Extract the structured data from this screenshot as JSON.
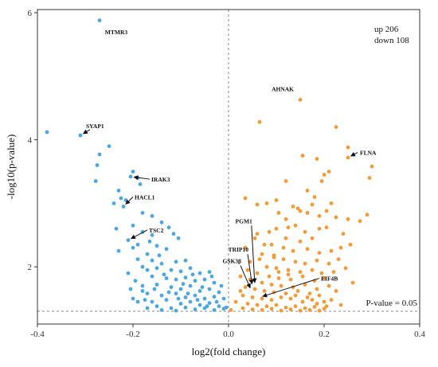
{
  "chart_data": {
    "type": "scatter",
    "title": "",
    "xlabel": "log2(fold change)",
    "ylabel": "-log10(p-value)",
    "xlim": [
      -0.4,
      0.4
    ],
    "ylim": [
      1.1,
      6.05
    ],
    "xticks": [
      -0.4,
      -0.2,
      0.0,
      0.2,
      0.4
    ],
    "xtick_labels": [
      "-0.4",
      "-0.2",
      "0.0",
      "0.2",
      "0.4"
    ],
    "yticks": [
      2,
      4,
      6
    ],
    "ytick_labels": [
      "2",
      "4",
      "6"
    ],
    "grid": false,
    "threshold": {
      "y": 1.301,
      "label": "P-value = 0.05"
    },
    "vertical_line_x": 0,
    "summary": {
      "up": "up 206",
      "down": "down 108"
    },
    "colors": {
      "up": "#f29b38",
      "down": "#4da6df",
      "guide": "#888888",
      "annotation": "#111111"
    },
    "series": [
      {
        "color": "#4da6df",
        "points": [
          [
            -0.27,
            5.88
          ],
          [
            -0.38,
            4.12
          ],
          [
            -0.31,
            4.07
          ],
          [
            -0.25,
            3.9
          ],
          [
            -0.27,
            3.77
          ],
          [
            -0.275,
            3.6
          ],
          [
            -0.278,
            3.35
          ],
          [
            -0.2,
            3.5
          ],
          [
            -0.205,
            3.42
          ],
          [
            -0.19,
            3.4
          ],
          [
            -0.185,
            3.3
          ],
          [
            -0.23,
            3.2
          ],
          [
            -0.225,
            3.08
          ],
          [
            -0.215,
            3.05
          ],
          [
            -0.22,
            2.95
          ],
          [
            -0.24,
            3.0
          ],
          [
            -0.18,
            2.85
          ],
          [
            -0.16,
            2.8
          ],
          [
            -0.14,
            2.7
          ],
          [
            -0.125,
            2.62
          ],
          [
            -0.115,
            2.52
          ],
          [
            -0.235,
            2.6
          ],
          [
            -0.2,
            2.65
          ],
          [
            -0.18,
            2.55
          ],
          [
            -0.105,
            2.45
          ],
          [
            -0.21,
            2.42
          ],
          [
            -0.165,
            2.4
          ],
          [
            -0.23,
            2.25
          ],
          [
            -0.2,
            2.3
          ],
          [
            -0.15,
            2.33
          ],
          [
            -0.13,
            2.28
          ],
          [
            -0.17,
            2.2
          ],
          [
            -0.19,
            2.12
          ],
          [
            -0.16,
            2.1
          ],
          [
            -0.14,
            2.05
          ],
          [
            -0.11,
            2.08
          ],
          [
            -0.09,
            2.1
          ],
          [
            -0.18,
            2.0
          ],
          [
            -0.15,
            1.98
          ],
          [
            -0.12,
            1.95
          ],
          [
            -0.1,
            1.93
          ],
          [
            -0.08,
            1.98
          ],
          [
            -0.06,
            1.9
          ],
          [
            -0.04,
            1.92
          ],
          [
            -0.16,
            1.85
          ],
          [
            -0.13,
            1.82
          ],
          [
            -0.11,
            1.8
          ],
          [
            -0.09,
            1.83
          ],
          [
            -0.07,
            1.78
          ],
          [
            -0.05,
            1.8
          ],
          [
            -0.03,
            1.75
          ],
          [
            -0.18,
            1.7
          ],
          [
            -0.15,
            1.72
          ],
          [
            -0.12,
            1.68
          ],
          [
            -0.1,
            1.65
          ],
          [
            -0.08,
            1.7
          ],
          [
            -0.06,
            1.62
          ],
          [
            -0.04,
            1.65
          ],
          [
            -0.02,
            1.6
          ],
          [
            -0.17,
            1.58
          ],
          [
            -0.14,
            1.55
          ],
          [
            -0.11,
            1.58
          ],
          [
            -0.09,
            1.52
          ],
          [
            -0.07,
            1.55
          ],
          [
            -0.05,
            1.5
          ],
          [
            -0.03,
            1.53
          ],
          [
            -0.01,
            1.5
          ],
          [
            -0.2,
            1.5
          ],
          [
            -0.16,
            1.45
          ],
          [
            -0.13,
            1.48
          ],
          [
            -0.1,
            1.42
          ],
          [
            -0.08,
            1.45
          ],
          [
            -0.06,
            1.4
          ],
          [
            -0.04,
            1.43
          ],
          [
            -0.02,
            1.38
          ],
          [
            -0.15,
            1.38
          ],
          [
            -0.12,
            1.35
          ],
          [
            -0.09,
            1.36
          ],
          [
            -0.07,
            1.33
          ],
          [
            -0.05,
            1.35
          ],
          [
            -0.03,
            1.32
          ],
          [
            -0.01,
            1.34
          ],
          [
            -0.17,
            1.35
          ],
          [
            -0.14,
            1.32
          ],
          [
            -0.11,
            1.31
          ],
          [
            -0.19,
            1.45
          ],
          [
            -0.18,
            1.62
          ],
          [
            -0.17,
            1.95
          ],
          [
            -0.16,
            2.5
          ],
          [
            -0.145,
            2.18
          ],
          [
            -0.135,
            1.88
          ],
          [
            -0.125,
            1.6
          ],
          [
            -0.095,
            1.73
          ],
          [
            -0.085,
            1.58
          ],
          [
            -0.075,
            1.88
          ],
          [
            -0.065,
            1.48
          ],
          [
            -0.055,
            1.68
          ],
          [
            -0.045,
            1.38
          ],
          [
            -0.035,
            1.85
          ],
          [
            -0.025,
            1.45
          ],
          [
            -0.015,
            1.7
          ],
          [
            -0.005,
            1.36
          ],
          [
            -0.21,
            1.9
          ],
          [
            -0.19,
            2.35
          ],
          [
            -0.205,
            1.65
          ],
          [
            -0.195,
            1.78
          ],
          [
            -0.175,
            1.48
          ],
          [
            -0.155,
            1.65
          ],
          [
            -0.105,
            1.5
          ]
        ]
      },
      {
        "color": "#f29b38",
        "points": [
          [
            0.15,
            4.63
          ],
          [
            0.065,
            4.28
          ],
          [
            0.225,
            4.2
          ],
          [
            0.25,
            3.88
          ],
          [
            0.25,
            3.72
          ],
          [
            0.185,
            3.7
          ],
          [
            0.155,
            3.75
          ],
          [
            0.3,
            3.58
          ],
          [
            0.295,
            3.4
          ],
          [
            0.2,
            3.45
          ],
          [
            0.195,
            3.35
          ],
          [
            0.12,
            3.35
          ],
          [
            0.21,
            3.5
          ],
          [
            0.18,
            3.1
          ],
          [
            0.215,
            3.0
          ],
          [
            0.175,
            2.98
          ],
          [
            0.035,
            3.08
          ],
          [
            0.06,
            2.98
          ],
          [
            0.08,
            3.0
          ],
          [
            0.1,
            3.05
          ],
          [
            0.135,
            2.95
          ],
          [
            0.15,
            2.88
          ],
          [
            0.165,
            2.85
          ],
          [
            0.19,
            2.8
          ],
          [
            0.205,
            2.88
          ],
          [
            0.225,
            2.78
          ],
          [
            0.25,
            2.75
          ],
          [
            0.275,
            2.72
          ],
          [
            0.29,
            2.82
          ],
          [
            0.12,
            2.75
          ],
          [
            0.14,
            2.65
          ],
          [
            0.1,
            2.6
          ],
          [
            0.16,
            2.55
          ],
          [
            0.19,
            2.6
          ],
          [
            0.205,
            2.62
          ],
          [
            0.24,
            2.52
          ],
          [
            0.12,
            2.45
          ],
          [
            0.15,
            2.4
          ],
          [
            0.175,
            2.45
          ],
          [
            0.09,
            2.35
          ],
          [
            0.115,
            2.3
          ],
          [
            0.135,
            2.25
          ],
          [
            0.165,
            2.28
          ],
          [
            0.19,
            2.22
          ],
          [
            0.215,
            2.25
          ],
          [
            0.235,
            2.3
          ],
          [
            0.07,
            2.2
          ],
          [
            0.095,
            2.15
          ],
          [
            0.115,
            2.12
          ],
          [
            0.14,
            2.08
          ],
          [
            0.16,
            2.05
          ],
          [
            0.185,
            2.1
          ],
          [
            0.21,
            2.05
          ],
          [
            0.08,
            2.0
          ],
          [
            0.1,
            1.98
          ],
          [
            0.125,
            1.95
          ],
          [
            0.15,
            1.92
          ],
          [
            0.175,
            1.95
          ],
          [
            0.195,
            1.9
          ],
          [
            0.22,
            1.92
          ],
          [
            0.06,
            1.9
          ],
          [
            0.085,
            1.85
          ],
          [
            0.105,
            1.82
          ],
          [
            0.13,
            1.8
          ],
          [
            0.155,
            1.85
          ],
          [
            0.18,
            1.78
          ],
          [
            0.2,
            1.82
          ],
          [
            0.045,
            1.8
          ],
          [
            0.07,
            1.75
          ],
          [
            0.09,
            1.72
          ],
          [
            0.11,
            1.7
          ],
          [
            0.135,
            1.68
          ],
          [
            0.16,
            1.72
          ],
          [
            0.185,
            1.65
          ],
          [
            0.21,
            1.7
          ],
          [
            0.035,
            1.68
          ],
          [
            0.055,
            1.65
          ],
          [
            0.075,
            1.62
          ],
          [
            0.095,
            1.6
          ],
          [
            0.12,
            1.58
          ],
          [
            0.145,
            1.62
          ],
          [
            0.17,
            1.58
          ],
          [
            0.19,
            1.55
          ],
          [
            0.03,
            1.55
          ],
          [
            0.05,
            1.52
          ],
          [
            0.07,
            1.5
          ],
          [
            0.09,
            1.48
          ],
          [
            0.11,
            1.52
          ],
          [
            0.13,
            1.5
          ],
          [
            0.155,
            1.45
          ],
          [
            0.175,
            1.48
          ],
          [
            0.2,
            1.45
          ],
          [
            0.04,
            1.42
          ],
          [
            0.06,
            1.4
          ],
          [
            0.08,
            1.38
          ],
          [
            0.1,
            1.4
          ],
          [
            0.12,
            1.36
          ],
          [
            0.14,
            1.38
          ],
          [
            0.16,
            1.35
          ],
          [
            0.18,
            1.37
          ],
          [
            0.2,
            1.34
          ],
          [
            0.03,
            1.35
          ],
          [
            0.05,
            1.33
          ],
          [
            0.07,
            1.32
          ],
          [
            0.09,
            1.34
          ],
          [
            0.11,
            1.31
          ],
          [
            0.13,
            1.33
          ],
          [
            0.15,
            1.31
          ],
          [
            0.17,
            1.32
          ],
          [
            0.19,
            1.31
          ],
          [
            0.005,
            1.32
          ],
          [
            0.015,
            1.45
          ],
          [
            0.025,
            1.62
          ],
          [
            0.04,
            1.95
          ],
          [
            0.055,
            2.45
          ],
          [
            0.06,
            2.52
          ],
          [
            0.085,
            2.55
          ],
          [
            0.105,
            2.85
          ],
          [
            0.125,
            2.62
          ],
          [
            0.145,
            2.92
          ],
          [
            0.165,
            3.2
          ],
          [
            0.23,
            2.12
          ],
          [
            0.245,
            1.98
          ],
          [
            0.255,
            2.35
          ],
          [
            0.26,
            1.75
          ],
          [
            0.225,
            1.62
          ],
          [
            0.215,
            1.48
          ],
          [
            0.235,
            1.4
          ],
          [
            0.205,
            1.38
          ],
          [
            0.185,
            1.42
          ],
          [
            0.165,
            1.52
          ],
          [
            0.14,
            1.55
          ],
          [
            0.125,
            1.88
          ],
          [
            0.045,
            2.08
          ],
          [
            0.035,
            2.3
          ],
          [
            0.025,
            1.85
          ],
          [
            0.065,
            2.12
          ],
          [
            0.075,
            2.35
          ],
          [
            0.095,
            2.18
          ],
          [
            0.105,
            1.92
          ]
        ]
      }
    ],
    "annotations": [
      {
        "label": "MTMR3",
        "point": [
          -0.27,
          5.88
        ],
        "text_at": [
          -0.262,
          5.7
        ],
        "arrow": false
      },
      {
        "label": "SYAP1",
        "point": [
          -0.31,
          4.07
        ],
        "text_at": [
          -0.29,
          4.16
        ],
        "arrow": true
      },
      {
        "label": "IRAK3",
        "point": [
          -0.205,
          3.42
        ],
        "text_at": [
          -0.165,
          3.38
        ],
        "arrow": true
      },
      {
        "label": "HACL1",
        "point": [
          -0.22,
          2.95
        ],
        "text_at": [
          -0.2,
          3.1
        ],
        "arrow": true
      },
      {
        "label": "TSC2",
        "point": [
          -0.21,
          2.42
        ],
        "text_at": [
          -0.17,
          2.58
        ],
        "arrow": true
      },
      {
        "label": "AHNAK",
        "point": [
          0.15,
          4.63
        ],
        "text_at": [
          0.14,
          4.8
        ],
        "arrow": false
      },
      {
        "label": "FLNA",
        "point": [
          0.25,
          3.72
        ],
        "text_at": [
          0.27,
          3.8
        ],
        "arrow": true
      },
      {
        "label": "PGM1",
        "point": [
          0.055,
          1.7
        ],
        "text_at": [
          0.048,
          2.65
        ],
        "arrow": true
      },
      {
        "label": "TRIP10",
        "point": [
          0.05,
          1.68
        ],
        "text_at": [
          0.04,
          2.2
        ],
        "arrow": true
      },
      {
        "label": "GSK3β",
        "point": [
          0.048,
          1.62
        ],
        "text_at": [
          0.025,
          2.02
        ],
        "arrow": true
      },
      {
        "label": "EIF4B",
        "point": [
          0.065,
          1.52
        ],
        "text_at": [
          0.19,
          1.82
        ],
        "arrow": true
      }
    ]
  }
}
